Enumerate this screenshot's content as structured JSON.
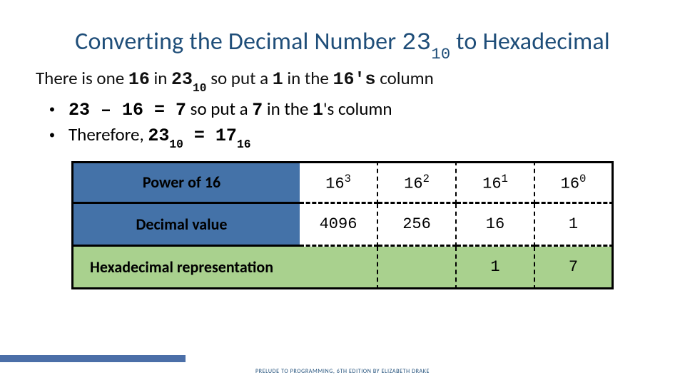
{
  "title_parts": {
    "a": "Converting the Decimal Number ",
    "num": "23",
    "sub": "10",
    "b": " to Hexadecimal"
  },
  "intro": {
    "a": "There is one ",
    "b16": "16",
    "b": " in ",
    "n": "23",
    "nsub": "10",
    "c": " so put a ",
    "one": "1",
    "d": " in the ",
    "col": "16's",
    "e": " column"
  },
  "bullet1": {
    "expr": "23 – 16 = 7",
    "mid": "  so put a ",
    "seven": "7",
    "rest": " in the ",
    "one": "1",
    "tail": "'s column"
  },
  "bullet2": {
    "a": "Therefore, ",
    "n": "23",
    "nsub": "10",
    "eq": "  =  ",
    "r": "17",
    "rsub": "16"
  },
  "table": {
    "labels": [
      "Power of 16",
      "Decimal value",
      "Hexadecimal representation"
    ],
    "powers": [
      "16",
      "16",
      "16",
      "16"
    ],
    "exps": [
      "3",
      "2",
      "1",
      "0"
    ],
    "decvals": [
      "4096",
      "256",
      "16",
      "1"
    ],
    "hex": [
      "",
      "",
      "1",
      "7"
    ]
  },
  "footer": "PRELUDE TO PROGRAMMING, 6TH EDITION BY ELIZABETH DRAKE"
}
